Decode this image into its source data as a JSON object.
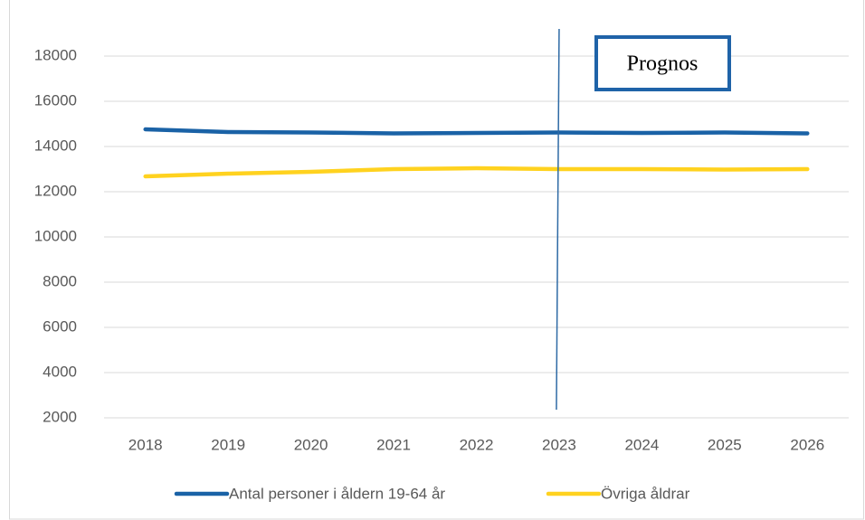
{
  "chart_data": {
    "type": "line",
    "categories": [
      "2018",
      "2019",
      "2020",
      "2021",
      "2022",
      "2023",
      "2024",
      "2025",
      "2026"
    ],
    "series": [
      {
        "name": "Antal personer i åldern 19-64 år",
        "color": "#1a62a6",
        "values": [
          14760,
          14640,
          14620,
          14580,
          14600,
          14620,
          14600,
          14620,
          14580
        ]
      },
      {
        "name": "Övriga åldrar",
        "color": "#ffd21f",
        "values": [
          12680,
          12800,
          12880,
          13000,
          13040,
          13000,
          13000,
          12980,
          13000
        ]
      }
    ],
    "ylim": [
      2000,
      20000
    ],
    "yticks": [
      2000,
      4000,
      6000,
      8000,
      10000,
      12000,
      14000,
      16000,
      18000
    ],
    "grid": true,
    "legend": "bottom",
    "annotation": {
      "text": "Prognos",
      "x": "2023"
    }
  }
}
